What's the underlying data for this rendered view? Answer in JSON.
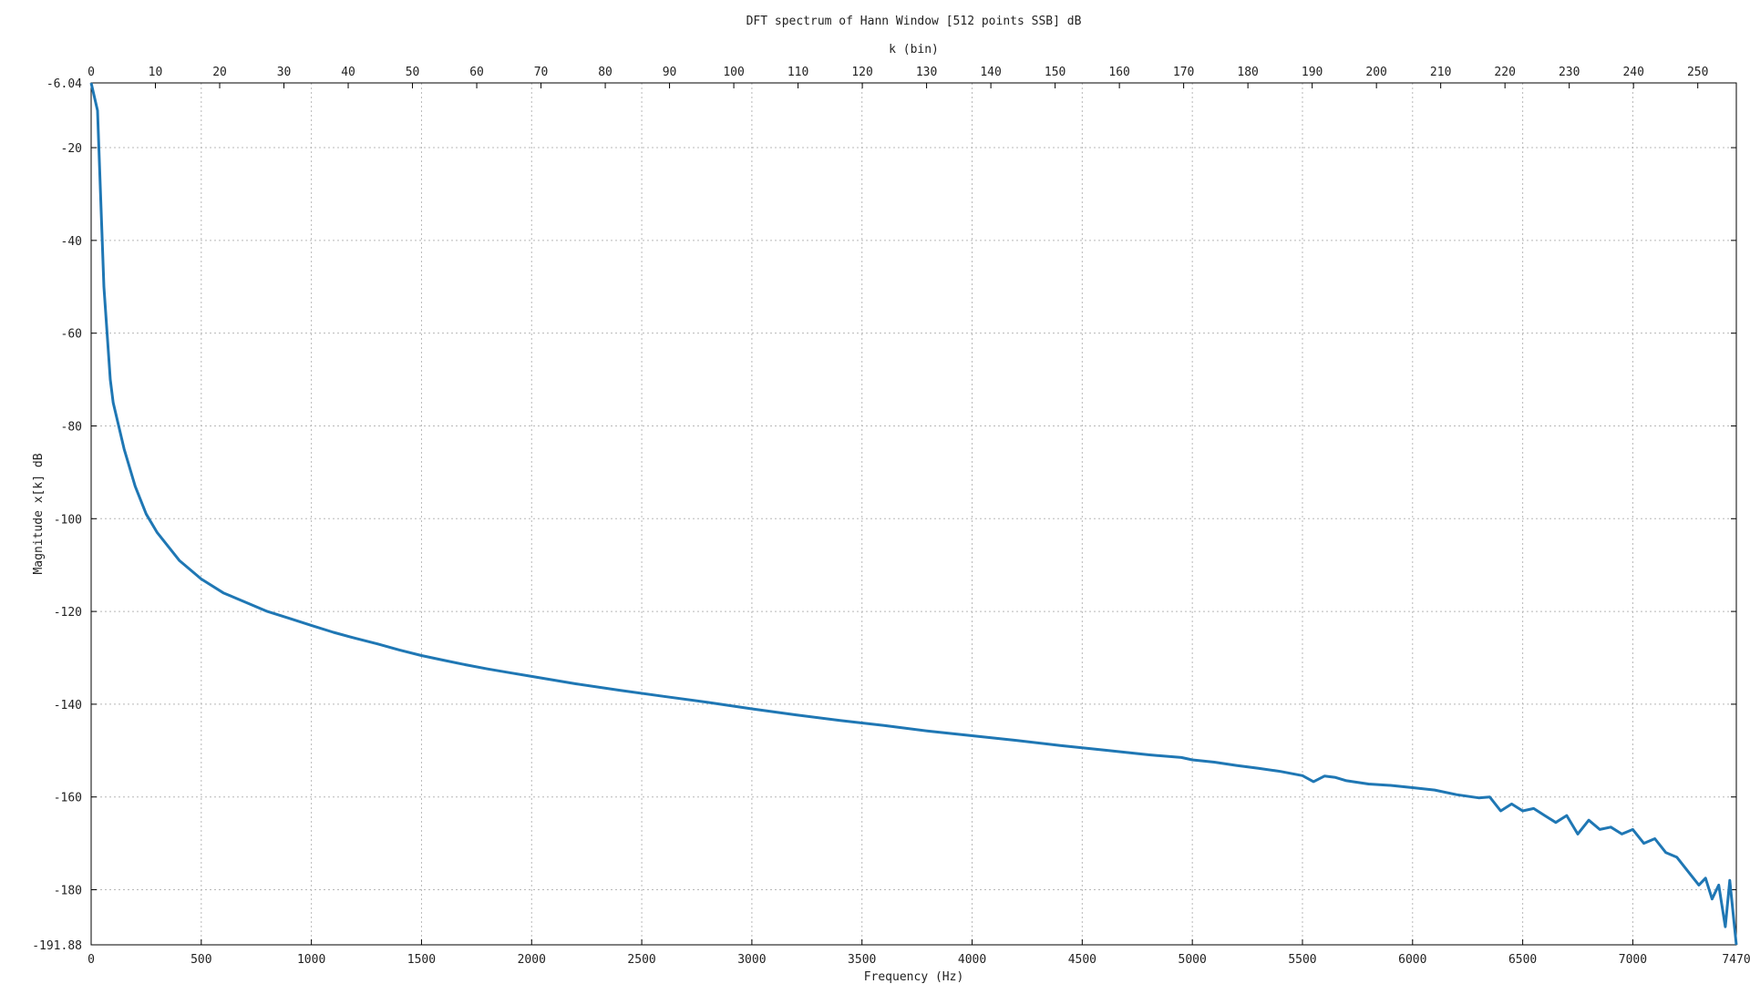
{
  "chart_data": {
    "type": "line",
    "title": "DFT spectrum of Hann Window [512 points SSB] dB",
    "xlabel": "Frequency (Hz)",
    "x2label": "k (bin)",
    "ylabel": "Magnitude x[k] dB",
    "xlim": [
      0,
      7470
    ],
    "x2lim": [
      0,
      256
    ],
    "ylim": [
      -191.88,
      -6.04
    ],
    "xticks": [
      0,
      500,
      1000,
      1500,
      2000,
      2500,
      3000,
      3500,
      4000,
      4500,
      5000,
      5500,
      6000,
      6500,
      7000,
      7470
    ],
    "x2ticks": [
      0,
      10,
      20,
      30,
      40,
      50,
      60,
      70,
      80,
      90,
      100,
      110,
      120,
      130,
      140,
      150,
      160,
      170,
      180,
      190,
      200,
      210,
      220,
      230,
      240,
      250
    ],
    "yticks": [
      -6.04,
      -20,
      -40,
      -60,
      -80,
      -100,
      -120,
      -140,
      -160,
      -180,
      -191.88
    ],
    "grid": true,
    "color": "#1f77b4",
    "series": [
      {
        "x": [
          0,
          29,
          58,
          87,
          100,
          150,
          200,
          250,
          300,
          350,
          400,
          500,
          600,
          700,
          800,
          900,
          1000,
          1100,
          1200,
          1300,
          1400,
          1500,
          1600,
          1700,
          1800,
          1900,
          2000,
          2200,
          2400,
          2600,
          2800,
          3000,
          3200,
          3400,
          3600,
          3800,
          4000,
          4200,
          4400,
          4600,
          4800,
          4950,
          5000,
          5100,
          5200,
          5300,
          5400,
          5500,
          5550,
          5600,
          5650,
          5700,
          5800,
          5900,
          6000,
          6100,
          6200,
          6300,
          6350,
          6400,
          6450,
          6500,
          6550,
          6600,
          6650,
          6700,
          6750,
          6800,
          6850,
          6900,
          6950,
          7000,
          7050,
          7100,
          7150,
          7200,
          7250,
          7300,
          7330,
          7360,
          7390,
          7420,
          7440,
          7470
        ],
        "y": [
          -6.04,
          -12,
          -50,
          -70,
          -75,
          -85,
          -93,
          -99,
          -103,
          -106,
          -109,
          -113,
          -116,
          -118,
          -120,
          -121.5,
          -123,
          -124.5,
          -125.8,
          -127,
          -128.3,
          -129.5,
          -130.5,
          -131.5,
          -132.4,
          -133.2,
          -134,
          -135.6,
          -137,
          -138.3,
          -139.6,
          -141,
          -142.3,
          -143.5,
          -144.6,
          -145.8,
          -146.8,
          -147.8,
          -148.9,
          -149.9,
          -150.9,
          -151.5,
          -152,
          -152.5,
          -153.2,
          -153.8,
          -154.5,
          -155.4,
          -156.7,
          -155.5,
          -155.8,
          -156.5,
          -157.2,
          -157.5,
          -158,
          -158.5,
          -159.5,
          -160.2,
          -160,
          -163,
          -161.5,
          -163,
          -162.5,
          -164,
          -165.5,
          -164,
          -168,
          -165,
          -167,
          -166.5,
          -168,
          -167,
          -170,
          -169,
          -172,
          -173,
          -176,
          -179,
          -177.5,
          -182,
          -179,
          -188,
          -178,
          -191.88
        ]
      }
    ]
  }
}
